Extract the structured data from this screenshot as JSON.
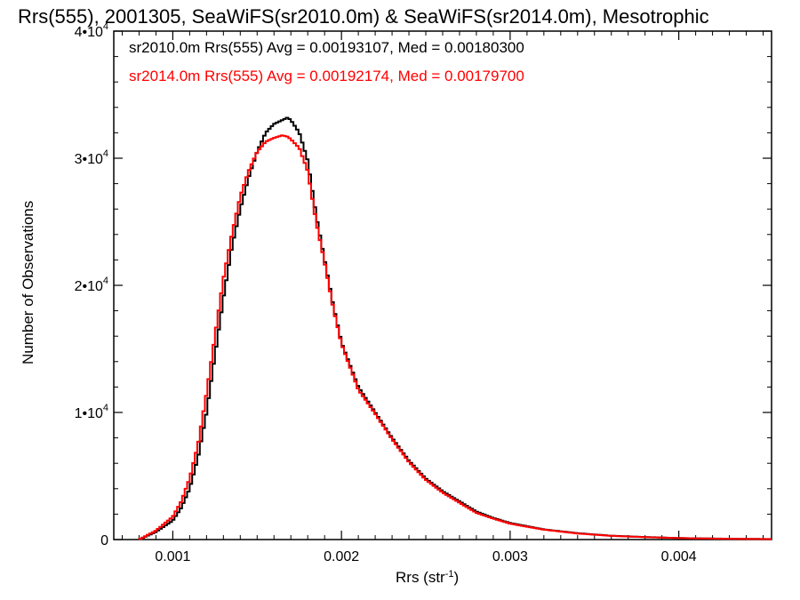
{
  "chart_data": {
    "type": "line",
    "title": "Rrs(555), 2001305, SeaWiFS(sr2010.0m) & SeaWiFS(sr2014.0m), Mesotrophic",
    "xlabel": "Rrs (str",
    "xlabel_exp": "-1",
    "xlabel_close": ")",
    "ylabel": "Number of Observations",
    "xlim": [
      0.00065,
      0.00455
    ],
    "ylim": [
      0,
      40000
    ],
    "x_ticks": [
      0.001,
      0.002,
      0.003,
      0.004
    ],
    "x_tick_labels": [
      "0.001",
      "0.002",
      "0.003",
      "0.004"
    ],
    "y_ticks": [
      0,
      10000,
      20000,
      30000,
      40000
    ],
    "y_tick_labels": [
      {
        "text": "0",
        "exp": ""
      },
      {
        "text": "1•10",
        "exp": "4"
      },
      {
        "text": "2•10",
        "exp": "4"
      },
      {
        "text": "3•10",
        "exp": "4"
      },
      {
        "text": "4•10",
        "exp": "4"
      }
    ],
    "series": [
      {
        "name": "sr2010.0m Rrs(555) Avg = 0.00193107, Med = 0.00180300",
        "color": "#000000",
        "x": [
          0.0008,
          0.0009,
          0.001,
          0.00105,
          0.0011,
          0.00115,
          0.0012,
          0.00125,
          0.0013,
          0.00135,
          0.0014,
          0.00145,
          0.0015,
          0.00155,
          0.0016,
          0.00165,
          0.00168,
          0.0017,
          0.00175,
          0.0018,
          0.00185,
          0.0019,
          0.00195,
          0.002,
          0.0021,
          0.0022,
          0.0023,
          0.0024,
          0.0025,
          0.0026,
          0.0027,
          0.0028,
          0.0029,
          0.003,
          0.0032,
          0.0034,
          0.0036,
          0.0038,
          0.004,
          0.0042,
          0.0044,
          0.00455
        ],
        "values": [
          0,
          600,
          1500,
          2500,
          4000,
          6500,
          10000,
          14500,
          19000,
          23000,
          26000,
          28500,
          30500,
          32000,
          32700,
          33000,
          33200,
          33000,
          32000,
          29800,
          25500,
          22000,
          18500,
          15500,
          12000,
          10000,
          8000,
          6200,
          4800,
          3800,
          3000,
          2200,
          1700,
          1300,
          800,
          500,
          300,
          200,
          120,
          80,
          50,
          40
        ]
      },
      {
        "name": "sr2014.0m Rrs(555) Avg = 0.00192174, Med = 0.00179700",
        "color": "#ff0000",
        "x": [
          0.0008,
          0.0009,
          0.001,
          0.00105,
          0.0011,
          0.00115,
          0.0012,
          0.00125,
          0.0013,
          0.00135,
          0.0014,
          0.00145,
          0.0015,
          0.00155,
          0.0016,
          0.00165,
          0.00168,
          0.0017,
          0.00175,
          0.0018,
          0.00185,
          0.0019,
          0.00195,
          0.002,
          0.0021,
          0.0022,
          0.0023,
          0.0024,
          0.0025,
          0.0026,
          0.0027,
          0.0028,
          0.0029,
          0.003,
          0.0032,
          0.0034,
          0.0036,
          0.0038,
          0.004,
          0.0042,
          0.0044,
          0.00455
        ],
        "values": [
          0,
          700,
          1800,
          3000,
          4800,
          7500,
          11500,
          16000,
          20500,
          24000,
          27000,
          29000,
          30500,
          31300,
          31600,
          31800,
          31700,
          31500,
          30800,
          29000,
          25000,
          21800,
          18300,
          15400,
          11800,
          9900,
          7900,
          6100,
          4700,
          3700,
          2900,
          2100,
          1650,
          1250,
          780,
          480,
          290,
          190,
          115,
          75,
          45,
          35
        ]
      }
    ]
  }
}
